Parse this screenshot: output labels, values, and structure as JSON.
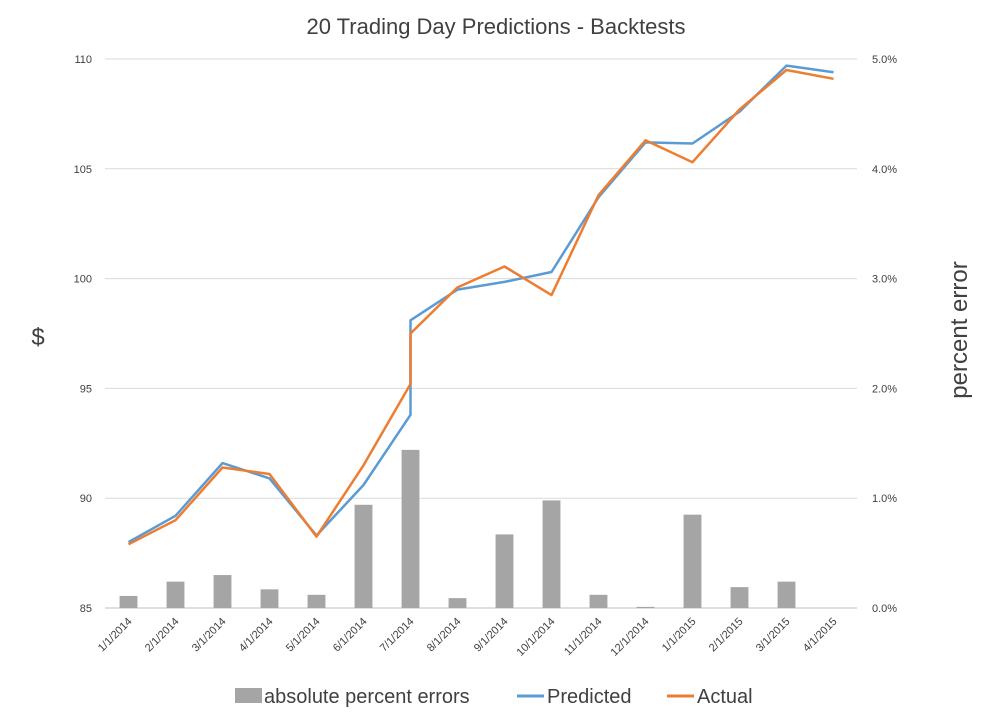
{
  "chart_data": {
    "type": "bar+line",
    "title": "20 Trading Day Predictions - Backtests",
    "ylabel_left": "$",
    "ylabel_right": "percent error",
    "xlabel": "",
    "ylim_left": [
      85,
      110
    ],
    "ylim_right": [
      0,
      0.05
    ],
    "yticks_left": [
      "85",
      "90",
      "95",
      "100",
      "105",
      "110"
    ],
    "yticks_right": [
      "0.0%",
      "1.0%",
      "2.0%",
      "3.0%",
      "4.0%",
      "5.0%"
    ],
    "categories": [
      "1/1/2014",
      "2/1/2014",
      "3/1/2014",
      "4/1/2014",
      "5/1/2014",
      "6/1/2014",
      "7/1/2014",
      "8/1/2014",
      "9/1/2014",
      "10/1/2014",
      "11/1/2014",
      "12/1/2014",
      "1/1/2015",
      "2/1/2015",
      "3/1/2015",
      "4/1/2015"
    ],
    "grid": true,
    "legend_position": "bottom",
    "series": [
      {
        "name": "absolute percent errors",
        "kind": "bar",
        "axis": "right",
        "color": "#a5a5a5",
        "values": [
          0.0011,
          0.0024,
          0.003,
          0.0017,
          0.0012,
          0.0094,
          0.0144,
          0.0009,
          0.0067,
          0.0098,
          0.0012,
          0.0001,
          0.0085,
          0.0019,
          0.0024,
          0.0
        ]
      },
      {
        "name": "Predicted",
        "kind": "line",
        "axis": "left",
        "color": "#5b9bd5",
        "values": [
          88.0,
          89.2,
          91.6,
          90.9,
          88.3,
          90.6,
          [
            93.8,
            98.1
          ],
          99.5,
          99.85,
          100.3,
          103.7,
          106.2,
          106.15,
          107.6,
          109.7,
          109.4
        ]
      },
      {
        "name": "Actual",
        "kind": "line",
        "axis": "left",
        "color": "#ed7d31",
        "values": [
          87.9,
          89.0,
          91.4,
          91.1,
          88.25,
          91.5,
          [
            95.2,
            97.5
          ],
          99.6,
          100.55,
          99.25,
          103.8,
          106.3,
          105.3,
          107.7,
          109.5,
          109.1
        ]
      }
    ]
  }
}
